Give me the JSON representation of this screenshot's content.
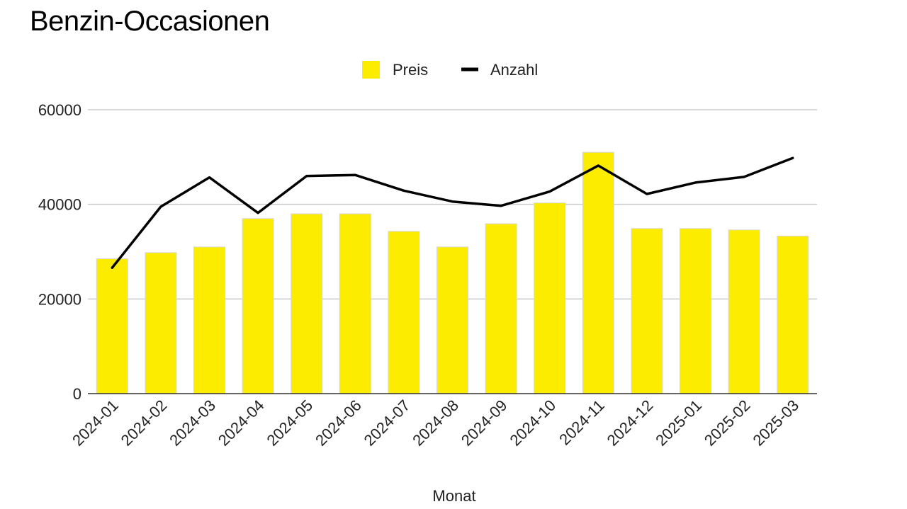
{
  "chart_data": {
    "type": "bar",
    "title": "Benzin-Occasionen",
    "xlabel": "Monat",
    "ylabel": "",
    "ylim": [
      0,
      60000
    ],
    "yticks": [
      "0",
      "20000",
      "40000",
      "60000"
    ],
    "categories": [
      "2024-01",
      "2024-02",
      "2024-03",
      "2024-04",
      "2024-05",
      "2024-06",
      "2024-07",
      "2024-08",
      "2024-09",
      "2024-10",
      "2024-11",
      "2024-12",
      "2025-01",
      "2025-02",
      "2025-03"
    ],
    "series": [
      {
        "name": "Preis",
        "type": "bar",
        "color": "#FCEC00",
        "values": [
          28500,
          29800,
          31000,
          37000,
          38000,
          38000,
          34300,
          31000,
          35900,
          40300,
          51000,
          34900,
          34900,
          34600,
          33300
        ]
      },
      {
        "name": "Anzahl",
        "type": "line",
        "color": "#000000",
        "values": [
          26600,
          39500,
          45700,
          38200,
          46000,
          46200,
          42900,
          40600,
          39700,
          42700,
          48200,
          42200,
          44600,
          45800,
          49800
        ]
      }
    ],
    "grid": true,
    "legend": "top-center"
  }
}
